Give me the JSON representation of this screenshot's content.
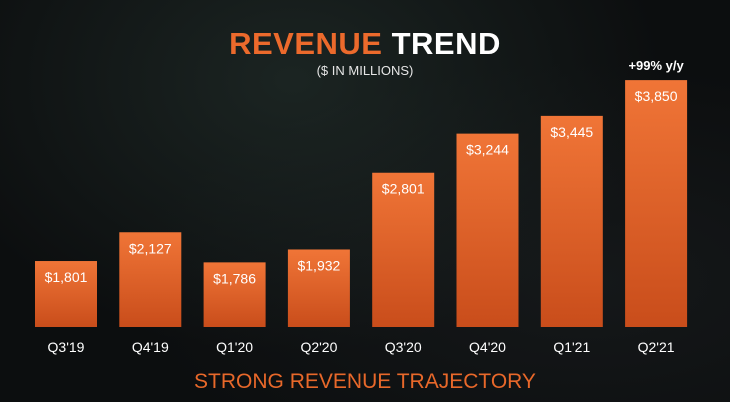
{
  "header": {
    "title_part1": "REVENUE",
    "title_part2": "TREND",
    "subtitle": "($ IN MILLIONS)"
  },
  "footer": {
    "text": "STRONG REVENUE TRAJECTORY"
  },
  "colors": {
    "bar_top": "#f07537",
    "bar_bottom": "#c94d1b",
    "accent": "#ec6a2c"
  },
  "chart_data": {
    "type": "bar",
    "categories": [
      "Q3'19",
      "Q4'19",
      "Q1'20",
      "Q2'20",
      "Q3'20",
      "Q4'20",
      "Q1'21",
      "Q2'21"
    ],
    "values": [
      1801,
      2127,
      1786,
      1932,
      2801,
      3244,
      3445,
      3850
    ],
    "data_labels": [
      "$1,801",
      "$2,127",
      "$1,786",
      "$1,932",
      "$2,801",
      "$3,244",
      "$3,445",
      "$3,850"
    ],
    "title": "REVENUE TREND",
    "subtitle": "($ IN MILLIONS)",
    "ylim": [
      1000,
      4000
    ],
    "annotations": [
      {
        "category": "Q2'21",
        "text": "+99% y/y"
      }
    ]
  }
}
